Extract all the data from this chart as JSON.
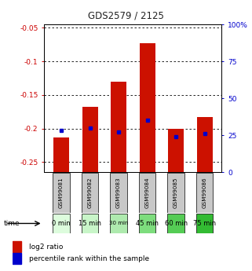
{
  "title": "GDS2579 / 2125",
  "samples": [
    "GSM99081",
    "GSM99082",
    "GSM99083",
    "GSM99084",
    "GSM99085",
    "GSM99086"
  ],
  "time_labels": [
    "0 min",
    "15 min",
    "30 min",
    "45 min",
    "60 min",
    "75 min"
  ],
  "log2_ratio": [
    -0.213,
    -0.168,
    -0.13,
    -0.073,
    -0.2,
    -0.183
  ],
  "percentile_rank": [
    28,
    30,
    27,
    35,
    24,
    26
  ],
  "ylim_left": [
    -0.265,
    -0.045
  ],
  "ylim_right": [
    0,
    100
  ],
  "yticks_left": [
    -0.05,
    -0.1,
    -0.15,
    -0.2,
    -0.25
  ],
  "yticks_right": [
    0,
    25,
    50,
    75,
    100
  ],
  "ytick_labels_right": [
    "0",
    "25",
    "50",
    "75",
    "100%"
  ],
  "bar_color": "#cc1100",
  "dot_color": "#0000cc",
  "bg_plot": "#ffffff",
  "time_colors": [
    "#ddfcdd",
    "#c8f5c8",
    "#aeeaae",
    "#7ddd7d",
    "#55cc55",
    "#33bb33"
  ],
  "sample_bg": "#c8c8c8",
  "title_color": "#222222",
  "left_axis_color": "#cc0000",
  "right_axis_color": "#0000cc",
  "bar_width": 0.55
}
